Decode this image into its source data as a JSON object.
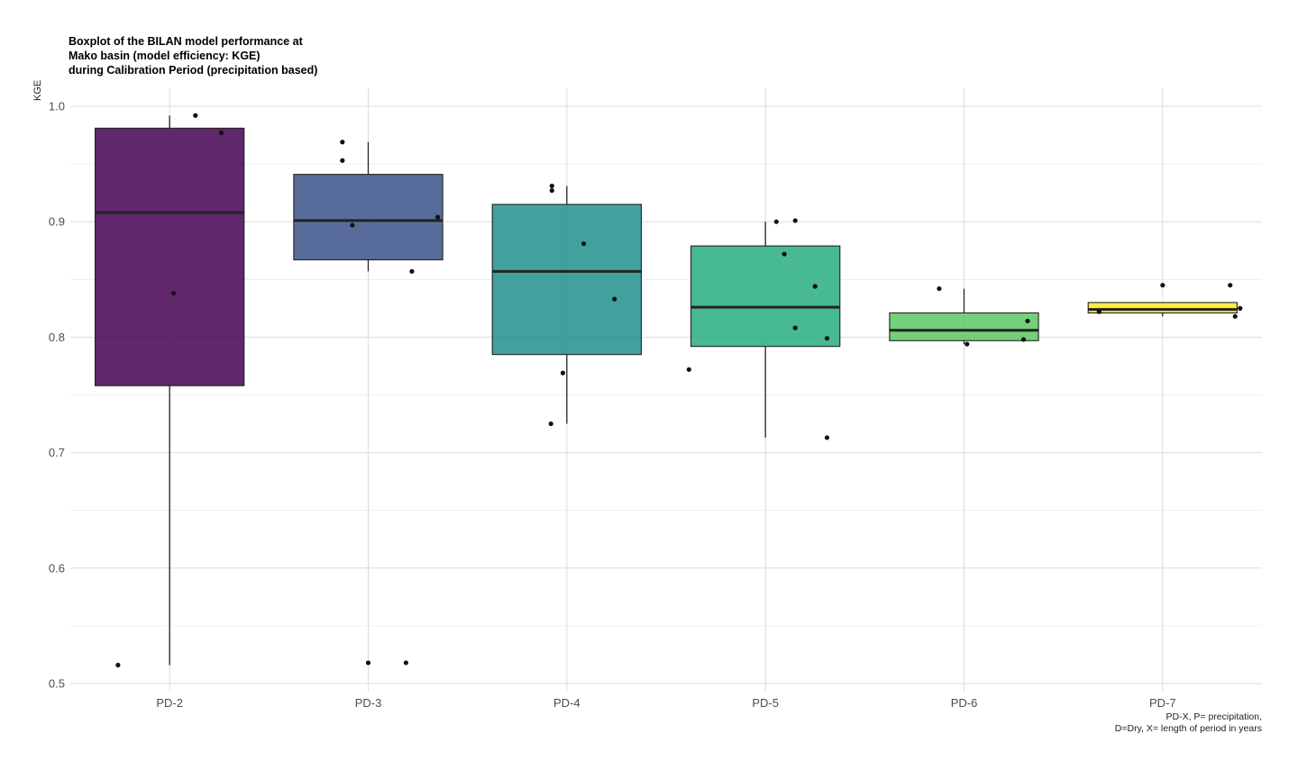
{
  "chart_data": {
    "type": "box",
    "title_lines": [
      "Boxplot of the BILAN model performance at",
      "Mako basin (model efficiency: KGE)",
      "during Calibration Period (precipitation based)"
    ],
    "xlabel": "",
    "ylabel": "KGE",
    "caption_lines": [
      "PD-X, P= precipitation,",
      "D=Dry, X= length of period in years"
    ],
    "ylim": [
      0.5,
      1.0
    ],
    "yticks": [
      0.5,
      0.6,
      0.7,
      0.8,
      0.9,
      1.0
    ],
    "ytick_labels": [
      "0.5",
      "0.6",
      "0.7",
      "0.8",
      "0.9",
      "1.0"
    ],
    "grid": true,
    "categories": [
      "PD-2",
      "PD-3",
      "PD-4",
      "PD-5",
      "PD-6",
      "PD-7"
    ],
    "boxes": [
      {
        "category": "PD-2",
        "color": "#440154",
        "q1": 0.758,
        "median": 0.908,
        "q3": 0.981,
        "whisker_low": 0.516,
        "whisker_high": 0.992,
        "points": [
          {
            "x_offset": -0.26,
            "y": 0.516
          },
          {
            "x_offset": 0.02,
            "y": 0.838
          },
          {
            "x_offset": 0.13,
            "y": 0.992
          },
          {
            "x_offset": 0.26,
            "y": 0.977
          }
        ]
      },
      {
        "category": "PD-3",
        "color": "#3b528b",
        "q1": 0.867,
        "median": 0.901,
        "q3": 0.941,
        "whisker_low": 0.857,
        "whisker_high": 0.969,
        "points": [
          {
            "x_offset": -0.13,
            "y": 0.969
          },
          {
            "x_offset": -0.13,
            "y": 0.953
          },
          {
            "x_offset": -0.08,
            "y": 0.897
          },
          {
            "x_offset": 0.0,
            "y": 0.518
          },
          {
            "x_offset": 0.19,
            "y": 0.518
          },
          {
            "x_offset": 0.22,
            "y": 0.857
          },
          {
            "x_offset": 0.35,
            "y": 0.904
          }
        ]
      },
      {
        "category": "PD-4",
        "color": "#21908c",
        "q1": 0.785,
        "median": 0.857,
        "q3": 0.915,
        "whisker_low": 0.725,
        "whisker_high": 0.931,
        "points": [
          {
            "x_offset": -0.08,
            "y": 0.725
          },
          {
            "x_offset": -0.075,
            "y": 0.931
          },
          {
            "x_offset": -0.075,
            "y": 0.927
          },
          {
            "x_offset": -0.02,
            "y": 0.769
          },
          {
            "x_offset": 0.085,
            "y": 0.881
          },
          {
            "x_offset": 0.24,
            "y": 0.833
          }
        ]
      },
      {
        "category": "PD-5",
        "color": "#27ad81",
        "q1": 0.792,
        "median": 0.826,
        "q3": 0.879,
        "whisker_low": 0.713,
        "whisker_high": 0.9,
        "points": [
          {
            "x_offset": -0.385,
            "y": 0.772
          },
          {
            "x_offset": 0.055,
            "y": 0.9
          },
          {
            "x_offset": 0.095,
            "y": 0.872
          },
          {
            "x_offset": 0.15,
            "y": 0.901
          },
          {
            "x_offset": 0.15,
            "y": 0.808
          },
          {
            "x_offset": 0.25,
            "y": 0.844
          },
          {
            "x_offset": 0.31,
            "y": 0.799
          },
          {
            "x_offset": 0.31,
            "y": 0.713
          }
        ]
      },
      {
        "category": "PD-6",
        "color": "#5dc863",
        "q1": 0.797,
        "median": 0.806,
        "q3": 0.821,
        "whisker_low": 0.794,
        "whisker_high": 0.842,
        "points": [
          {
            "x_offset": -0.125,
            "y": 0.842
          },
          {
            "x_offset": 0.015,
            "y": 0.794
          },
          {
            "x_offset": 0.3,
            "y": 0.798
          },
          {
            "x_offset": 0.32,
            "y": 0.814
          }
        ]
      },
      {
        "category": "PD-7",
        "color": "#fde725",
        "q1": 0.821,
        "median": 0.824,
        "q3": 0.83,
        "whisker_low": 0.818,
        "whisker_high": 0.83,
        "points": [
          {
            "x_offset": -0.32,
            "y": 0.822
          },
          {
            "x_offset": 0.0,
            "y": 0.845
          },
          {
            "x_offset": 0.34,
            "y": 0.845
          },
          {
            "x_offset": 0.365,
            "y": 0.818
          },
          {
            "x_offset": 0.39,
            "y": 0.825
          }
        ]
      }
    ]
  }
}
